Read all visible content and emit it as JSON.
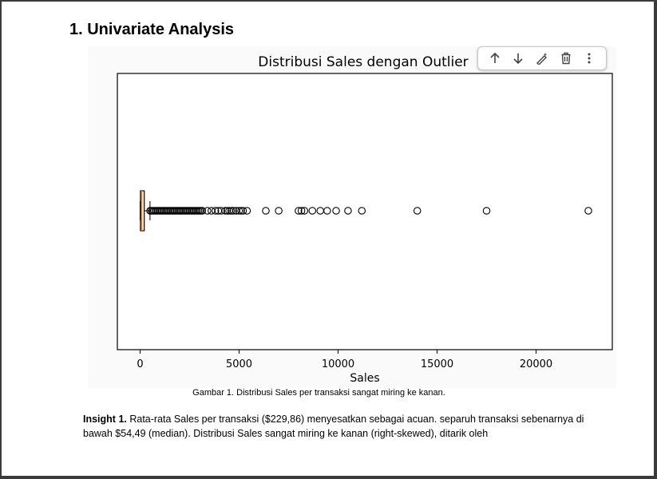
{
  "document": {
    "heading": "1. Univariate Analysis",
    "caption": "Gambar 1. Distribusi Sales per transaksi sangat miring ke kanan.",
    "insight_label": "Insight 1.",
    "insight_text": " Rata-rata Sales per transaksi ($229,86) menyesatkan sebagai acuan. separuh transaksi sebenarnya di bawah $54,49 (median). Distribusi Sales sangat miring ke kanan (right-skewed), ditarik oleh"
  },
  "toolbar": {
    "icons": [
      "arrow-up-icon",
      "arrow-down-icon",
      "edit-magic-icon",
      "trash-icon",
      "more-vertical-icon"
    ]
  },
  "chart_data": {
    "type": "boxplot",
    "orientation": "horizontal",
    "title": "Distribusi Sales dengan Outlier",
    "xlabel": "Sales",
    "ylabel": "",
    "xlim": [
      -1150,
      23850
    ],
    "xticks": [
      0,
      5000,
      10000,
      15000,
      20000
    ],
    "xticklabels": [
      "0",
      "5000",
      "10000",
      "15000",
      "20000"
    ],
    "box": {
      "whisker_low": 0.4,
      "q1": 17,
      "median": 54,
      "q3": 210,
      "whisker_high": 499
    },
    "dense_outlier_range": [
      500,
      3200
    ],
    "outliers": [
      3400,
      3600,
      3800,
      3950,
      4100,
      4300,
      4400,
      4500,
      4600,
      4700,
      4850,
      5000,
      5100,
      5200,
      5400,
      6350,
      7000,
      8000,
      8150,
      8300,
      8700,
      9100,
      9450,
      9900,
      10500,
      11200,
      14000,
      17500,
      22640
    ],
    "colors": {
      "box_edge": "#000000",
      "median": "#ff7f0e",
      "frame": "#000000"
    }
  }
}
